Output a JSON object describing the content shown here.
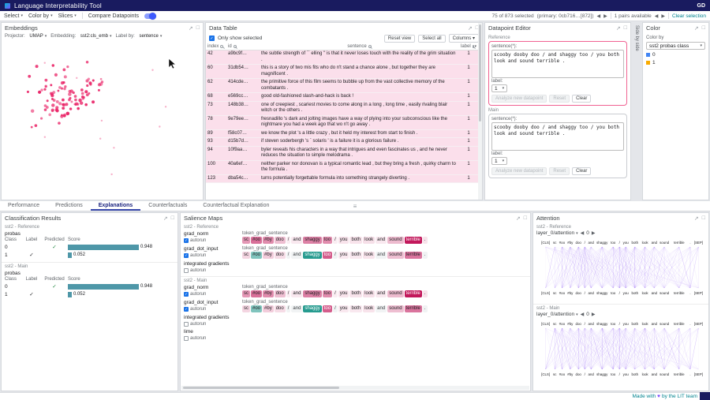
{
  "app": {
    "title": "Language Interpretability Tool",
    "user_initials": "GD",
    "footer_prefix": "Made with",
    "footer_heart": "♥",
    "footer_suffix": "by the LIT team"
  },
  "toolbar": {
    "select_label": "Select",
    "color_by_label": "Color by",
    "slices_label": "Slices",
    "compare_label": "Compare Datapoints",
    "selection_status": "75 of 873 selected",
    "primary_status": "(primary: 0cb716…[872])",
    "pairs_status": "1 pairs available",
    "clear_selection": "Clear selection"
  },
  "embeddings": {
    "title": "Embeddings",
    "projector_label": "Projector:",
    "projector_value": "UMAP",
    "embedding_label": "Embedding:",
    "embedding_value": "sst2:cls_emb",
    "labelby_label": "Label by:",
    "labelby_value": "sentence"
  },
  "data_table": {
    "title": "Data Table",
    "only_show_selected": "Only show selected",
    "reset_view": "Reset view",
    "select_all": "Select all",
    "columns_btn": "Columns",
    "headers": {
      "index": "index",
      "id": "id",
      "sentence": "sentence",
      "label": "label"
    },
    "rows": [
      {
        "index": "42",
        "id": "a9bc9f…",
        "sentence": "the subtle strength of `` elling '' is that it never loses touch with the reality of the grim situation .",
        "label": "1"
      },
      {
        "index": "60",
        "id": "31db54…",
        "sentence": "this is a story of two mis fits who do n't stand a chance alone , but together they are magnificent .",
        "label": "1"
      },
      {
        "index": "62",
        "id": "414cde…",
        "sentence": "the primitive force of this film seems to bubble up from the vast collective memory of the combatants .",
        "label": "1"
      },
      {
        "index": "68",
        "id": "e569cc…",
        "sentence": "good old-fashioned slash-and-hack is back !",
        "label": "1"
      },
      {
        "index": "73",
        "id": "148b38…",
        "sentence": "one of creepiest , scariest movies to come along in a long , long time , easily rivaling blair witch or the others .",
        "label": "1"
      },
      {
        "index": "78",
        "id": "9e79ee…",
        "sentence": "fresnadillo 's dark and jolting images have a way of plying into your subconscious like the nightmare you had a week ago that wo n't go away .",
        "label": "1"
      },
      {
        "index": "89",
        "id": "f58c07…",
        "sentence": "we know the plot 's a little crazy , but it held my interest from start to finish .",
        "label": "1"
      },
      {
        "index": "93",
        "id": "d15b7d…",
        "sentence": "if steven soderbergh 's ` solaris ' is a failure it is a glorious failure .",
        "label": "1"
      },
      {
        "index": "94",
        "id": "10f9aa…",
        "sentence": "byler reveals his characters in a way that intrigues and even fascinates us , and he never reduces the situation to simple melodrama .",
        "label": "1"
      },
      {
        "index": "100",
        "id": "40a6ef…",
        "sentence": "neither parker nor donovan is a typical romantic lead , but they bring a fresh , quirky charm to the formula .",
        "label": "1"
      },
      {
        "index": "123",
        "id": "dba54c…",
        "sentence": "turns potentially forgettable formula into something strangely diverting .",
        "label": "1"
      }
    ]
  },
  "datapoint_editor": {
    "title": "Datapoint Editor",
    "sections": [
      {
        "name": "Reference",
        "sentence_label": "sentence(*):",
        "sentence": "scooby dooby doo / and shaggy too / you both look and sound terrible .",
        "label_label": "label:",
        "label_value": "1"
      },
      {
        "name": "Main",
        "sentence_label": "sentence(*):",
        "sentence": "scooby dooby doo / and shaggy too / you both look and sound terrible .",
        "label_label": "label:",
        "label_value": "1"
      }
    ],
    "analyze_btn": "Analyze new datapoint",
    "reset_btn": "Reset",
    "clear_btn": "Clear"
  },
  "side_by_side_label": "Side by side",
  "color_module": {
    "title": "Color",
    "color_by_label": "Color by",
    "value": "sst2 probas class",
    "legend": [
      {
        "label": "0",
        "color": "#4285f4"
      },
      {
        "label": "1",
        "label_color": "",
        "color": "#f9ab00"
      }
    ]
  },
  "tabs": {
    "items": [
      "Performance",
      "Predictions",
      "Explanations",
      "Counterfactuals",
      "Counterfactual Explanation"
    ],
    "active": "Explanations"
  },
  "classification": {
    "title": "Classification Results",
    "field": "probas",
    "headers": [
      "Class",
      "Label",
      "Predicted",
      "Score"
    ],
    "sections": [
      {
        "model": "sst2 - Reference",
        "rows": [
          {
            "cls": "0",
            "label": false,
            "predicted": true,
            "score": 0.948
          },
          {
            "cls": "1",
            "label": true,
            "predicted": false,
            "score": 0.052
          }
        ]
      },
      {
        "model": "sst2 - Main",
        "rows": [
          {
            "cls": "0",
            "label": false,
            "predicted": true,
            "score": 0.948
          },
          {
            "cls": "1",
            "label": true,
            "predicted": false,
            "score": 0.052
          }
        ]
      }
    ]
  },
  "salience": {
    "title": "Salience Maps",
    "autorun_label": "autorun",
    "token_group_label": "token_grad_sentence",
    "tokens": [
      "sc",
      "#oo",
      "#by",
      "doo",
      "/",
      "and",
      "shaggy",
      "too",
      "/",
      "you",
      "both",
      "look",
      "and",
      "sound",
      "terrible",
      "."
    ],
    "weights": {
      "grad_norm": [
        0.45,
        0.62,
        0.5,
        0.28,
        0.08,
        0.1,
        0.55,
        0.5,
        0.08,
        0.12,
        0.12,
        0.14,
        0.1,
        0.3,
        1.0,
        0.12
      ],
      "grad_dot_input": [
        0.18,
        -0.5,
        0.22,
        0.15,
        0.05,
        0.06,
        -0.85,
        0.7,
        0.05,
        0.1,
        0.1,
        0.12,
        0.06,
        0.28,
        0.6,
        0.06
      ]
    },
    "sections": [
      {
        "model": "sst2 - Reference",
        "methods": [
          {
            "name": "grad_norm",
            "autorun": true,
            "weights": "grad_norm"
          },
          {
            "name": "grad_dot_input",
            "autorun": true,
            "weights": "grad_dot_input"
          },
          {
            "name": "integrated gradients",
            "autorun": false,
            "weights": null
          }
        ]
      },
      {
        "model": "sst2 - Main",
        "methods": [
          {
            "name": "grad_norm",
            "autorun": true,
            "weights": "grad_norm"
          },
          {
            "name": "grad_dot_input",
            "autorun": true,
            "weights": "grad_dot_input"
          },
          {
            "name": "integrated gradients",
            "autorun": false,
            "weights": null
          },
          {
            "name": "lime",
            "autorun": false,
            "weights": null
          }
        ]
      }
    ]
  },
  "attention": {
    "title": "Attention",
    "layer_label": "layer_0/attention",
    "head_value": "0",
    "tokens": [
      "[CLS]",
      "sc",
      "#oo",
      "#by",
      "doo",
      "/",
      "and",
      "shaggy",
      "too",
      "/",
      "you",
      "both",
      "look",
      "and",
      "sound",
      "terrible",
      ".",
      "[SEP]"
    ],
    "sections": [
      {
        "model": "sst2 - Reference"
      },
      {
        "model": "sst2 - Main"
      }
    ]
  },
  "colors": {
    "scatter": "#e91e63",
    "attention_line": "#7b3ff2",
    "score_bar": "#4e97a8",
    "pos_salience": "#c2185b",
    "neg_salience": "#00897b"
  }
}
